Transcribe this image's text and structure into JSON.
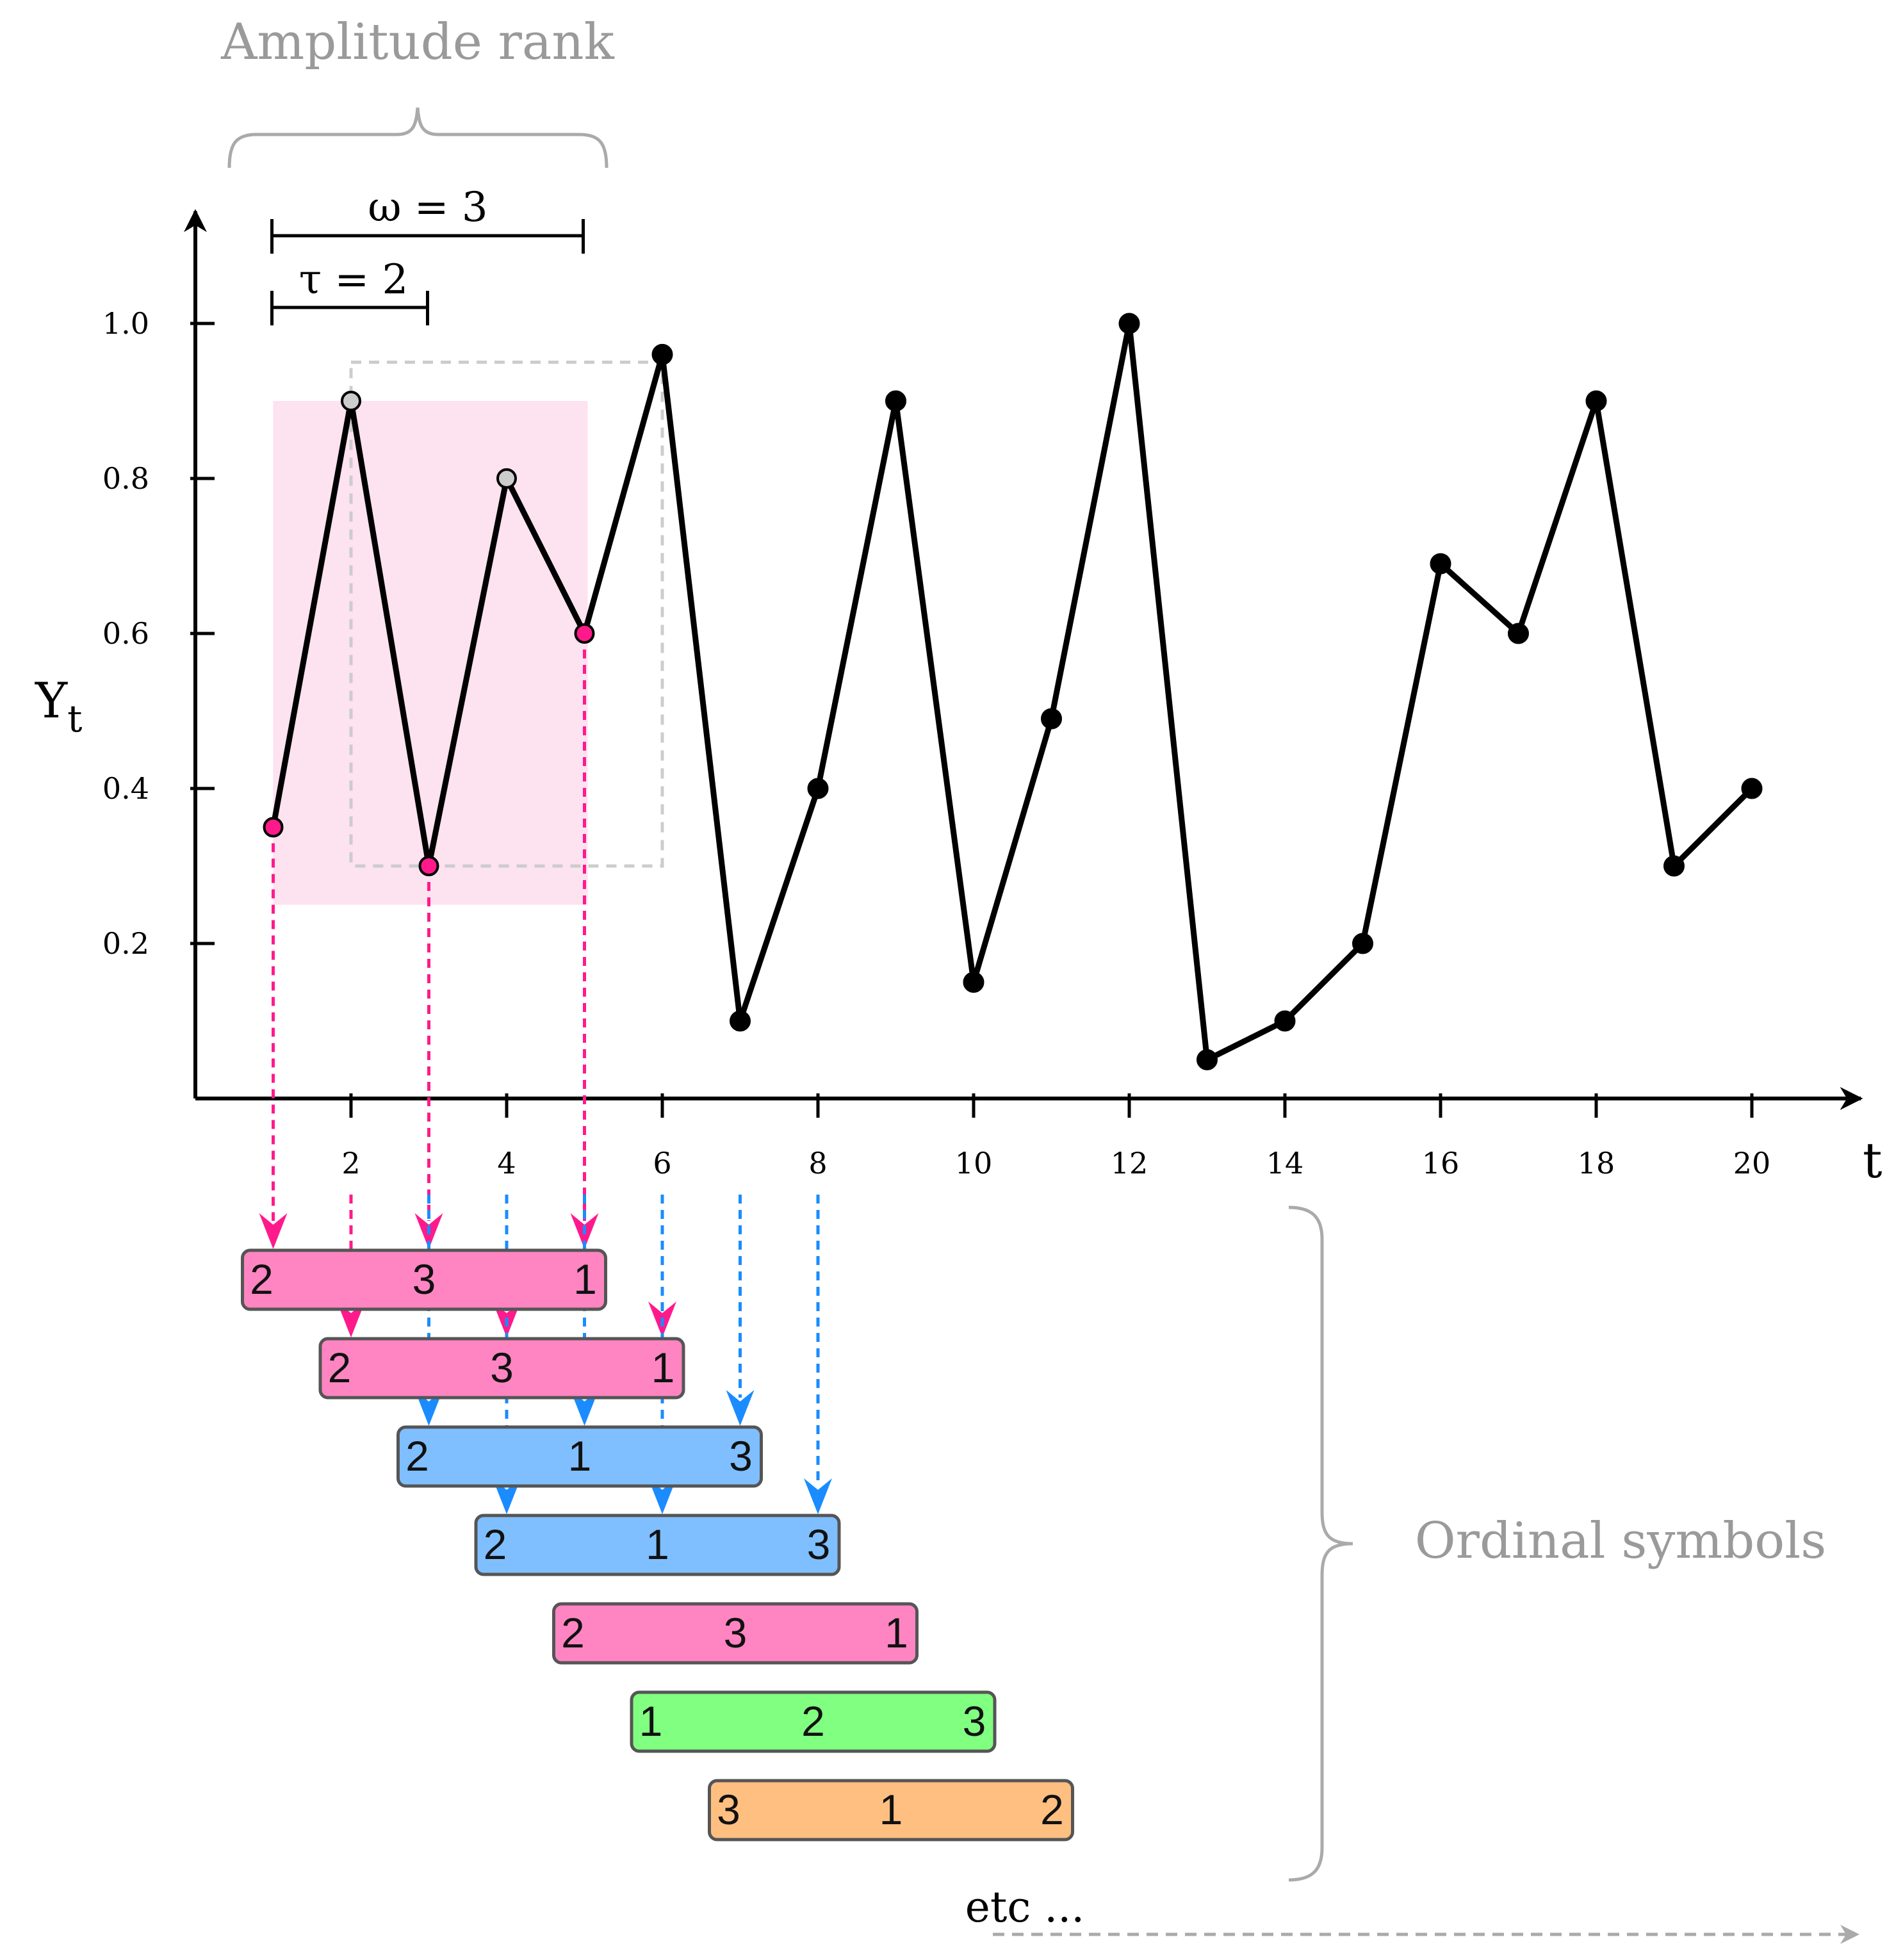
{
  "annotations": {
    "amplitude_rank": "Amplitude rank",
    "omega": "ω = 3",
    "tau": "τ = 2",
    "ordinal_symbols": "Ordinal symbols",
    "etc": "etc ..."
  },
  "colors": {
    "pink": "#ff85c2",
    "pink_accent": "#ff1a8c",
    "blue": "#7fbfff",
    "blue_accent": "#1a8cff",
    "green": "#80ff80",
    "orange": "#ffbf80",
    "shade": "#fde2ef",
    "gray": "#aaaaaa"
  },
  "chart_data": {
    "type": "line",
    "title": "",
    "xlabel": "t",
    "ylabel": "Y",
    "ylabel_sub": "t",
    "xlim": [
      0,
      21
    ],
    "ylim": [
      0,
      1.1
    ],
    "x_ticks": [
      2,
      4,
      6,
      8,
      10,
      12,
      14,
      16,
      18,
      20
    ],
    "y_ticks": [
      0.2,
      0.4,
      0.6,
      0.8,
      1.0
    ],
    "y_tick_labels": [
      "0.2",
      "0.4",
      "0.6",
      "0.8",
      "1.0"
    ],
    "x": [
      1,
      2,
      3,
      4,
      5,
      6,
      7,
      8,
      9,
      10,
      11,
      12,
      13,
      14,
      15,
      16,
      17,
      18,
      19,
      20
    ],
    "values": [
      0.35,
      0.9,
      0.3,
      0.8,
      0.6,
      0.96,
      0.1,
      0.4,
      0.9,
      0.15,
      0.49,
      1.0,
      0.05,
      0.1,
      0.2,
      0.69,
      0.6,
      0.9,
      0.3,
      0.4
    ],
    "highlight_pink_points": [
      1,
      3,
      5
    ],
    "highlight_gray_points": [
      2,
      4
    ],
    "first_window": [
      1,
      3,
      5
    ],
    "second_window": [
      2,
      4,
      6
    ]
  },
  "ordinal_symbols": [
    {
      "start": 1,
      "ranks": [
        "2",
        "3",
        "1"
      ],
      "color": "pink"
    },
    {
      "start": 2,
      "ranks": [
        "2",
        "3",
        "1"
      ],
      "color": "pink"
    },
    {
      "start": 3,
      "ranks": [
        "2",
        "1",
        "3"
      ],
      "color": "blue"
    },
    {
      "start": 4,
      "ranks": [
        "2",
        "1",
        "3"
      ],
      "color": "blue"
    },
    {
      "start": 5,
      "ranks": [
        "2",
        "3",
        "1"
      ],
      "color": "pink"
    },
    {
      "start": 6,
      "ranks": [
        "1",
        "2",
        "3"
      ],
      "color": "green"
    },
    {
      "start": 7,
      "ranks": [
        "3",
        "1",
        "2"
      ],
      "color": "orange"
    }
  ]
}
